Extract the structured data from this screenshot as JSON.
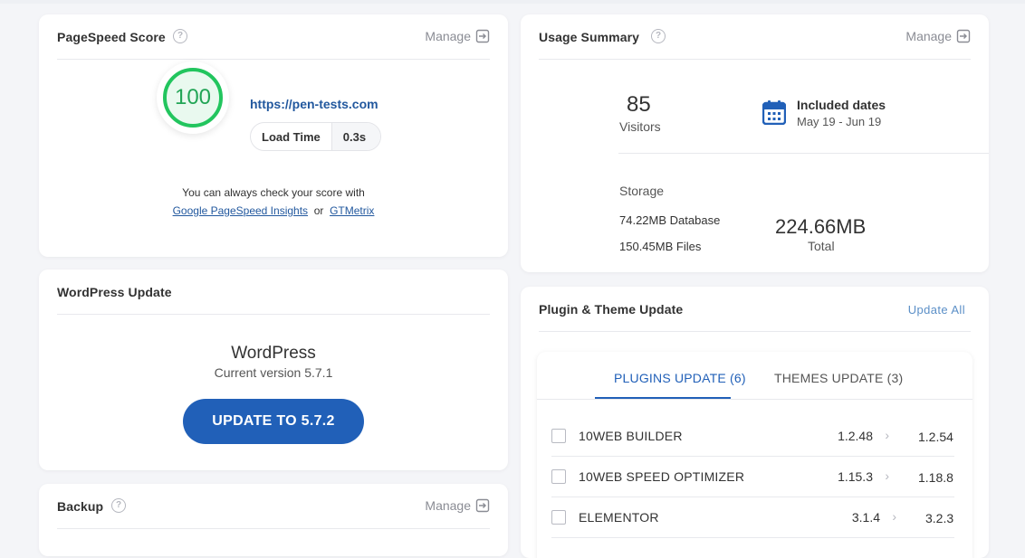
{
  "pagespeed": {
    "title": "PageSpeed Score",
    "manage_label": "Manage",
    "score": "100",
    "url": "https://pen-tests.com",
    "load_time_label": "Load Time",
    "load_time_value": "0.3s",
    "note": "You can always check your score with",
    "link_google": "Google PageSpeed Insights",
    "or_text": "or",
    "link_gtmetrix": "GTMetrix"
  },
  "wordpress": {
    "title": "WordPress Update",
    "name": "WordPress",
    "current_version": "Current version 5.7.1",
    "button_label": "UPDATE TO 5.7.2"
  },
  "backup": {
    "title": "Backup",
    "manage_label": "Manage"
  },
  "usage": {
    "title": "Usage Summary",
    "manage_label": "Manage",
    "visitors_value": "85",
    "visitors_label": "Visitors",
    "included_title": "Included dates",
    "included_range": "May 19 - Jun 19",
    "storage_label": "Storage",
    "database_text": "74.22MB Database",
    "files_text": "150.45MB Files",
    "total_value": "224.66MB",
    "total_label": "Total"
  },
  "plugins": {
    "title": "Plugin & Theme Update",
    "update_all_label": "Update All",
    "tabs": [
      {
        "label": "PLUGINS UPDATE (6)",
        "active": true
      },
      {
        "label": "THEMES UPDATE (3)",
        "active": false
      }
    ],
    "rows": [
      {
        "name": "10WEB BUILDER",
        "current": "1.2.48",
        "new": "1.2.54"
      },
      {
        "name": "10WEB SPEED OPTIMIZER",
        "current": "1.15.3",
        "new": "1.18.8"
      },
      {
        "name": "ELEMENTOR",
        "current": "3.1.4",
        "new": "3.2.3"
      }
    ]
  },
  "colors": {
    "accent": "#2160b8",
    "score_green": "#22c55e",
    "link": "#22589e"
  },
  "icons": {
    "help": "help-circle-icon",
    "manage": "external-arrow-icon",
    "calendar": "calendar-icon",
    "chevron": "chevron-right-icon"
  }
}
